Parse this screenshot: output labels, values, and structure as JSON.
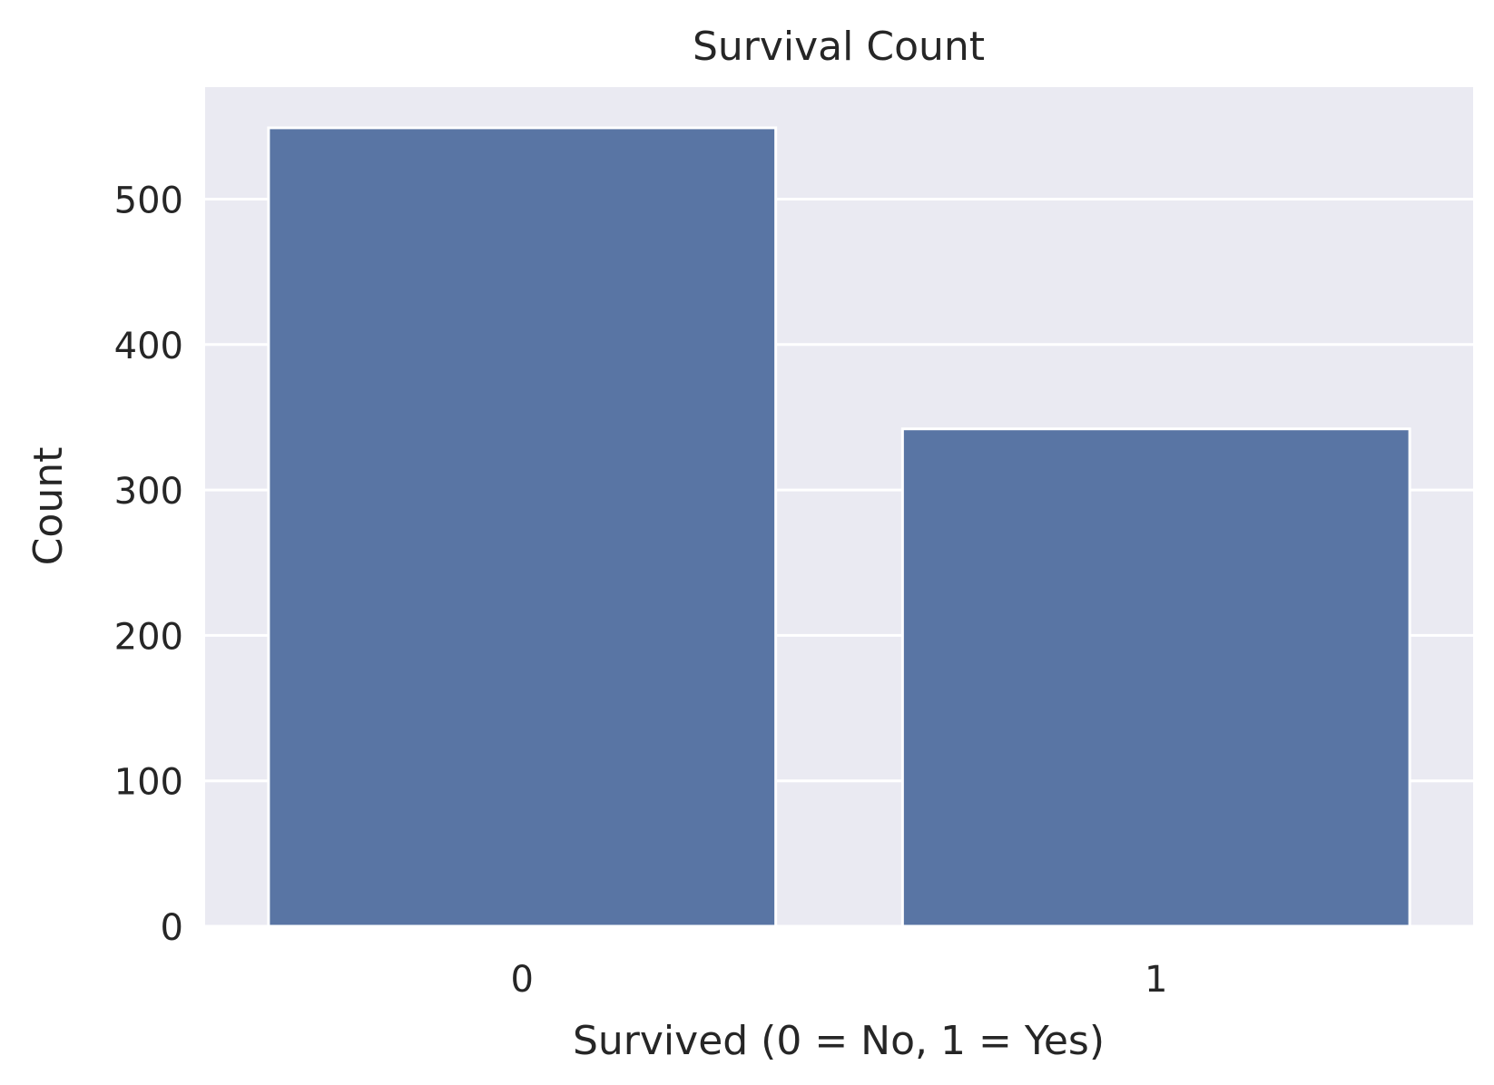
{
  "chart_data": {
    "type": "bar",
    "title": "Survival Count",
    "xlabel": "Survived (0 = No, 1 = Yes)",
    "ylabel": "Count",
    "categories": [
      "0",
      "1"
    ],
    "values": [
      549,
      342
    ],
    "ylim": [
      0,
      577
    ],
    "yticks": [
      "0",
      "100",
      "200",
      "300",
      "400",
      "500"
    ],
    "grid": true,
    "bar_color": "#5975a4",
    "plot_background": "#eaeaf2",
    "grid_color": "#ffffff"
  }
}
